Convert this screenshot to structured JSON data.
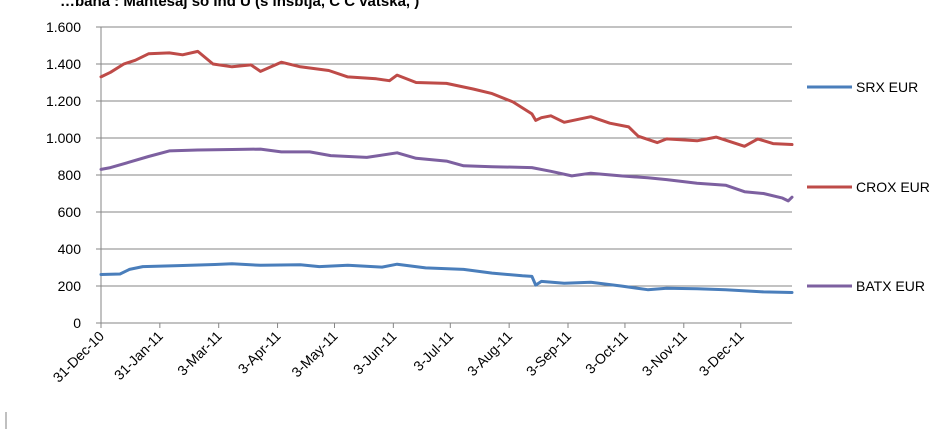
{
  "chart_data": {
    "type": "line",
    "title_fragment": "…bana  :  Mantesaj  so     Ind    U  (s   insbtja, C   C       vatska,            )",
    "xlabel": "",
    "ylabel": "",
    "ylim": [
      0,
      1600
    ],
    "yticks": [
      0,
      200,
      400,
      600,
      800,
      1000,
      1200,
      1400,
      1600
    ],
    "ytick_labels": [
      "0",
      "200",
      "400",
      "600",
      "800",
      "1.000",
      "1.200",
      "1.400",
      "1.600"
    ],
    "date_start": "2010-12-31",
    "xtick_labels": [
      "31-Dec-10",
      "31-Jan-11",
      "3-Mar-11",
      "3-Apr-11",
      "3-May-11",
      "3-Jun-11",
      "3-Jul-11",
      "3-Aug-11",
      "3-Sep-11",
      "3-Oct-11",
      "3-Nov-11",
      "3-Dec-11"
    ],
    "xtick_dates": [
      "2010-12-31",
      "2011-01-31",
      "2011-03-03",
      "2011-04-03",
      "2011-05-03",
      "2011-06-03",
      "2011-07-03",
      "2011-08-03",
      "2011-09-03",
      "2011-10-03",
      "2011-11-03",
      "2011-12-03"
    ],
    "xlim": [
      "2010-12-31",
      "2011-12-30"
    ],
    "grid": "horizontal",
    "legend_position": "right",
    "series": [
      {
        "name": "SRX EUR",
        "color": "#4a7ebb",
        "points": [
          [
            "2010-12-31",
            262
          ],
          [
            "2011-01-10",
            265
          ],
          [
            "2011-01-15",
            290
          ],
          [
            "2011-01-22",
            305
          ],
          [
            "2011-02-10",
            310
          ],
          [
            "2011-03-01",
            316
          ],
          [
            "2011-03-10",
            320
          ],
          [
            "2011-03-25",
            312
          ],
          [
            "2011-04-15",
            315
          ],
          [
            "2011-04-25",
            305
          ],
          [
            "2011-05-10",
            312
          ],
          [
            "2011-05-28",
            302
          ],
          [
            "2011-06-05",
            318
          ],
          [
            "2011-06-20",
            298
          ],
          [
            "2011-07-10",
            290
          ],
          [
            "2011-07-25",
            270
          ],
          [
            "2011-08-10",
            255
          ],
          [
            "2011-08-15",
            252
          ],
          [
            "2011-08-17",
            205
          ],
          [
            "2011-08-20",
            225
          ],
          [
            "2011-09-01",
            215
          ],
          [
            "2011-09-15",
            220
          ],
          [
            "2011-10-01",
            200
          ],
          [
            "2011-10-15",
            180
          ],
          [
            "2011-10-25",
            188
          ],
          [
            "2011-11-10",
            185
          ],
          [
            "2011-11-25",
            180
          ],
          [
            "2011-12-15",
            168
          ],
          [
            "2011-12-30",
            165
          ]
        ]
      },
      {
        "name": "CROX EUR",
        "color": "#be4b48",
        "points": [
          [
            "2010-12-31",
            1330
          ],
          [
            "2011-01-05",
            1355
          ],
          [
            "2011-01-12",
            1400
          ],
          [
            "2011-01-18",
            1420
          ],
          [
            "2011-01-25",
            1455
          ],
          [
            "2011-02-05",
            1460
          ],
          [
            "2011-02-12",
            1450
          ],
          [
            "2011-02-20",
            1468
          ],
          [
            "2011-02-28",
            1400
          ],
          [
            "2011-03-10",
            1385
          ],
          [
            "2011-03-20",
            1395
          ],
          [
            "2011-03-25",
            1360
          ],
          [
            "2011-04-05",
            1410
          ],
          [
            "2011-04-15",
            1385
          ],
          [
            "2011-04-30",
            1365
          ],
          [
            "2011-05-10",
            1330
          ],
          [
            "2011-05-25",
            1320
          ],
          [
            "2011-06-01",
            1310
          ],
          [
            "2011-06-05",
            1340
          ],
          [
            "2011-06-15",
            1300
          ],
          [
            "2011-07-01",
            1295
          ],
          [
            "2011-07-15",
            1265
          ],
          [
            "2011-07-25",
            1240
          ],
          [
            "2011-08-05",
            1195
          ],
          [
            "2011-08-15",
            1130
          ],
          [
            "2011-08-17",
            1095
          ],
          [
            "2011-08-20",
            1110
          ],
          [
            "2011-08-25",
            1120
          ],
          [
            "2011-09-01",
            1085
          ],
          [
            "2011-09-15",
            1115
          ],
          [
            "2011-09-25",
            1080
          ],
          [
            "2011-10-05",
            1060
          ],
          [
            "2011-10-10",
            1010
          ],
          [
            "2011-10-20",
            975
          ],
          [
            "2011-10-25",
            995
          ],
          [
            "2011-11-10",
            985
          ],
          [
            "2011-11-20",
            1005
          ],
          [
            "2011-12-05",
            955
          ],
          [
            "2011-12-12",
            995
          ],
          [
            "2011-12-20",
            970
          ],
          [
            "2011-12-30",
            965
          ]
        ]
      },
      {
        "name": "BATX EUR",
        "color": "#7d60a0",
        "points": [
          [
            "2010-12-31",
            830
          ],
          [
            "2011-01-05",
            840
          ],
          [
            "2011-01-15",
            870
          ],
          [
            "2011-01-25",
            900
          ],
          [
            "2011-02-05",
            930
          ],
          [
            "2011-02-20",
            935
          ],
          [
            "2011-03-10",
            938
          ],
          [
            "2011-03-25",
            940
          ],
          [
            "2011-04-05",
            925
          ],
          [
            "2011-04-20",
            925
          ],
          [
            "2011-05-01",
            905
          ],
          [
            "2011-05-20",
            895
          ],
          [
            "2011-06-05",
            920
          ],
          [
            "2011-06-15",
            890
          ],
          [
            "2011-07-01",
            875
          ],
          [
            "2011-07-10",
            850
          ],
          [
            "2011-07-25",
            845
          ],
          [
            "2011-08-15",
            840
          ],
          [
            "2011-08-25",
            820
          ],
          [
            "2011-09-05",
            795
          ],
          [
            "2011-09-15",
            810
          ],
          [
            "2011-10-01",
            795
          ],
          [
            "2011-10-15",
            785
          ],
          [
            "2011-10-25",
            775
          ],
          [
            "2011-11-10",
            755
          ],
          [
            "2011-11-25",
            745
          ],
          [
            "2011-12-05",
            710
          ],
          [
            "2011-12-15",
            700
          ],
          [
            "2011-12-25",
            675
          ],
          [
            "2011-12-28",
            660
          ],
          [
            "2011-12-30",
            680
          ]
        ]
      }
    ]
  }
}
